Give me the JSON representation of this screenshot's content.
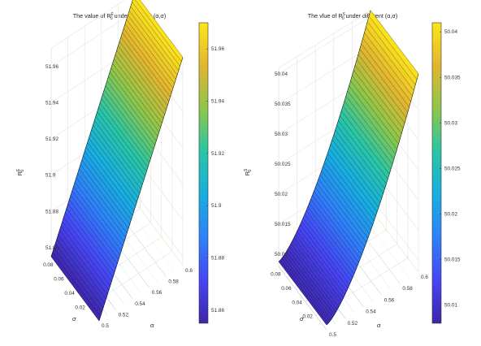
{
  "chart_data": [
    {
      "type": "surface",
      "title": "The value of R",
      "title_sup": "E",
      "title_sub": "0",
      "title_rest": " under different (α,σ)",
      "zlabel": "R",
      "zlabel_sup": "E",
      "zlabel_sub": "0",
      "xlabel": "α",
      "ylabel": "σ",
      "x_ticks": [
        "0.5",
        "0.52",
        "0.54",
        "0.56",
        "0.58",
        "0.6"
      ],
      "y_ticks": [
        "0.02",
        "0.04",
        "0.06",
        "0.08"
      ],
      "z_ticks": [
        "51.86",
        "51.88",
        "51.9",
        "51.92",
        "51.94",
        "51.96"
      ],
      "colorbar_ticks": [
        "51.86",
        "51.88",
        "51.9",
        "51.92",
        "51.94",
        "51.96"
      ],
      "xlim": [
        0.5,
        0.6
      ],
      "ylim": [
        0,
        0.09
      ],
      "zlim": [
        51.855,
        51.97
      ],
      "colormap": "parula",
      "colormap_stops": [
        "#3e26a8",
        "#4745f3",
        "#2f81f9",
        "#18aee0",
        "#2ac5a6",
        "#8ec64a",
        "#e3b530",
        "#fbe61b"
      ],
      "surface": {
        "alpha_range": [
          0.5,
          0.6
        ],
        "sigma_range": [
          0,
          0.09
        ],
        "value_at_alpha_0.5": 51.855,
        "value_at_alpha_0.6": 51.97,
        "shape": "linear in α, constant in σ"
      }
    },
    {
      "type": "surface",
      "title": "The vlue of R",
      "title_sup": "S",
      "title_sub": "0",
      "title_rest": " under different (α,σ)",
      "zlabel": "R",
      "zlabel_sup": "S",
      "zlabel_sub": "0",
      "xlabel": "α",
      "ylabel": "σ",
      "x_ticks": [
        "0.5",
        "0.52",
        "0.54",
        "0.56",
        "0.58",
        "0.6"
      ],
      "y_ticks": [
        "0.02",
        "0.04",
        "0.06",
        "0.08"
      ],
      "z_ticks": [
        "50.01",
        "50.015",
        "50.02",
        "50.025",
        "50.03",
        "50.035",
        "50.04"
      ],
      "colorbar_ticks": [
        "50.01",
        "50.015",
        "50.02",
        "50.025",
        "50.03",
        "50.035",
        "50.04"
      ],
      "xlim": [
        0.5,
        0.6
      ],
      "ylim": [
        0,
        0.09
      ],
      "zlim": [
        50.008,
        50.041
      ],
      "colormap": "parula",
      "colormap_stops": [
        "#3e26a8",
        "#4745f3",
        "#2f81f9",
        "#18aee0",
        "#2ac5a6",
        "#8ec64a",
        "#e3b530",
        "#fbe61b"
      ],
      "surface": {
        "alpha_range": [
          0.5,
          0.6
        ],
        "sigma_range": [
          0,
          0.09
        ],
        "value_at_alpha_0.5": 50.0088,
        "value_at_alpha_0.6": 50.041,
        "shape": "convex in α, constant in σ"
      }
    }
  ]
}
